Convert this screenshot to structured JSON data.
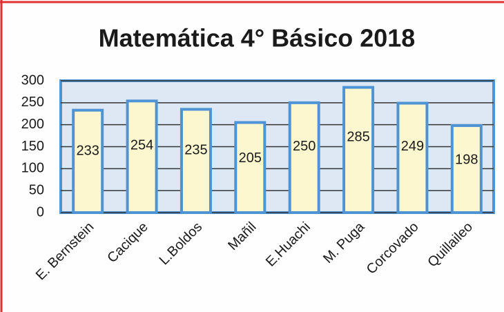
{
  "chart_data": {
    "type": "bar",
    "title": "Matemática 4° Básico  2018",
    "categories": [
      "E. Bernstein",
      "Cacique",
      "L.Boldos",
      "Mañil",
      "E.Huachi",
      "M. Puga",
      "Corcovado",
      "Quillaileo"
    ],
    "values": [
      233,
      254,
      235,
      205,
      250,
      285,
      249,
      198
    ],
    "color": "#fdf7cf",
    "edge_color": "#4e94d4",
    "ylim": [
      0,
      300
    ],
    "yticks": [
      0,
      50,
      100,
      150,
      200,
      250,
      300
    ],
    "grid": true
  }
}
